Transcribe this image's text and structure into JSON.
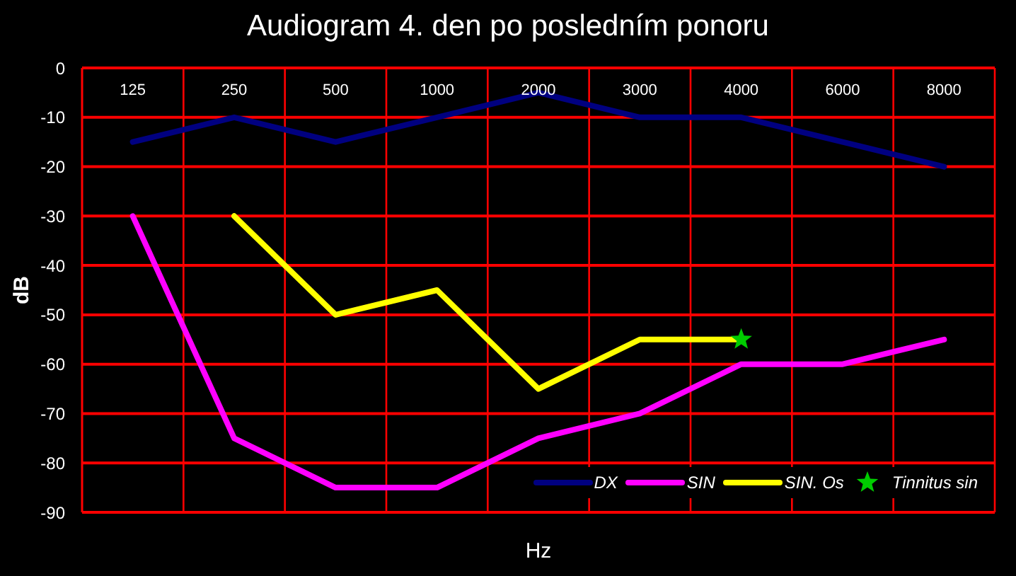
{
  "chart_data": {
    "type": "line",
    "title": "Audiogram 4. den po posledním ponoru",
    "xlabel": "Hz",
    "ylabel": "dB",
    "categories": [
      "125",
      "250",
      "500",
      "1000",
      "2000",
      "3000",
      "4000",
      "6000",
      "8000"
    ],
    "series": [
      {
        "name": "DX",
        "color": "#000080",
        "values": [
          -15,
          -10,
          -15,
          -10,
          -5,
          -10,
          -10,
          -15,
          -20
        ]
      },
      {
        "name": "SIN",
        "color": "#ff00ff",
        "values": [
          -30,
          -75,
          -85,
          -85,
          -75,
          -70,
          -60,
          -60,
          -55
        ]
      },
      {
        "name": "SIN. Os",
        "color": "#ffff00",
        "values": [
          null,
          -30,
          -50,
          -45,
          -65,
          -55,
          -55,
          null,
          null
        ]
      },
      {
        "name": "Tinnitus sin",
        "type": "scatter",
        "marker": "star",
        "color": "#00cc00",
        "values": [
          null,
          null,
          null,
          null,
          null,
          null,
          -55,
          null,
          null
        ]
      }
    ],
    "ylim": [
      -90,
      0
    ],
    "yticks": [
      0,
      -10,
      -20,
      -30,
      -40,
      -50,
      -60,
      -70,
      -80,
      -90
    ],
    "grid": true,
    "legend": "bottom right",
    "marker": "none",
    "line_style": "solid"
  }
}
